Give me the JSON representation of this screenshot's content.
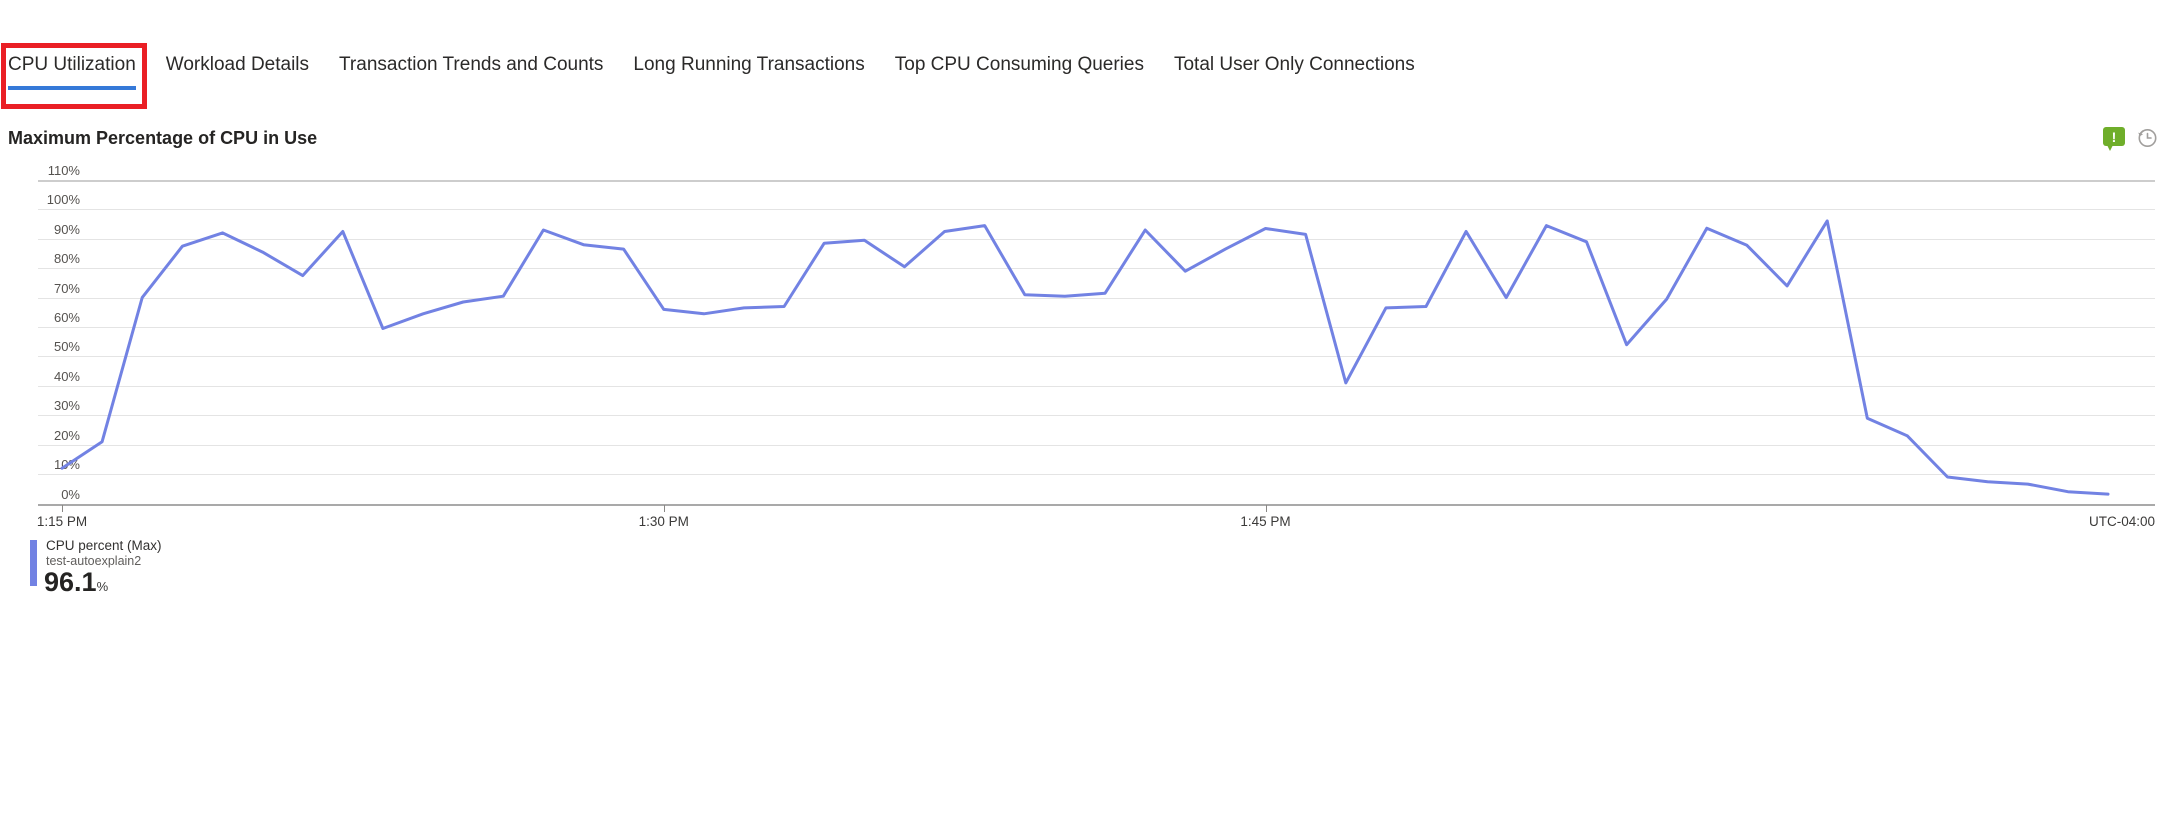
{
  "tabs": {
    "items": [
      {
        "label": "CPU Utilization",
        "selected": true
      },
      {
        "label": "Workload Details",
        "selected": false
      },
      {
        "label": "Transaction Trends and Counts",
        "selected": false
      },
      {
        "label": "Long Running Transactions",
        "selected": false
      },
      {
        "label": "Top CPU Consuming Queries",
        "selected": false
      },
      {
        "label": "Total User Only Connections",
        "selected": false
      }
    ],
    "selected_underline_color": "#3579d8",
    "annotation_box_color": "#ea1f25"
  },
  "chart": {
    "title": "Maximum Percentage of CPU in Use",
    "icons": [
      {
        "name": "feedback-icon",
        "glyph": "!",
        "color": "#6fae2a"
      },
      {
        "name": "time-settings-icon",
        "color": "#a19f9d"
      }
    ],
    "legend": {
      "series_label": "CPU percent (Max)",
      "resource_name": "test-autoexplain2",
      "max_value": "96.1",
      "unit": "%"
    },
    "timezone_label": "UTC-04:00"
  },
  "chart_data": {
    "type": "line",
    "title": "Maximum Percentage of CPU in Use",
    "xlabel": "",
    "ylabel": "CPU percent (Max)",
    "ylim": [
      0,
      110
    ],
    "grid": "horizontal",
    "legend_position": "bottom-left",
    "timezone": "UTC-04:00",
    "x_start": "1:15 PM",
    "x_interval_minutes": 1,
    "x_tick_labels": [
      "1:15 PM",
      "1:30 PM",
      "1:45 PM"
    ],
    "x_tick_indices": [
      0,
      15,
      30
    ],
    "y_tick_labels": [
      "110%",
      "100%",
      "90%",
      "80%",
      "70%",
      "60%",
      "50%",
      "40%",
      "30%",
      "20%",
      "10%",
      "0%"
    ],
    "series": [
      {
        "name": "CPU percent (Max)",
        "resource": "test-autoexplain2",
        "color": "#7282e3",
        "max": 96.1,
        "values": [
          12,
          21,
          70,
          87.5,
          92,
          85.5,
          77.5,
          92.5,
          59.5,
          64.5,
          68.5,
          70.5,
          93,
          88,
          86.5,
          66,
          64.5,
          66.5,
          67,
          88.5,
          89.5,
          80.5,
          92.5,
          94.5,
          71,
          70.5,
          71.5,
          93,
          79,
          86.5,
          93.5,
          91.5,
          41,
          66.5,
          67,
          92.5,
          70,
          94.5,
          89,
          54,
          69.5,
          93.6,
          87.8,
          74,
          96.1,
          29,
          23,
          9,
          7.4,
          6.6,
          4,
          3.2
        ]
      }
    ]
  }
}
